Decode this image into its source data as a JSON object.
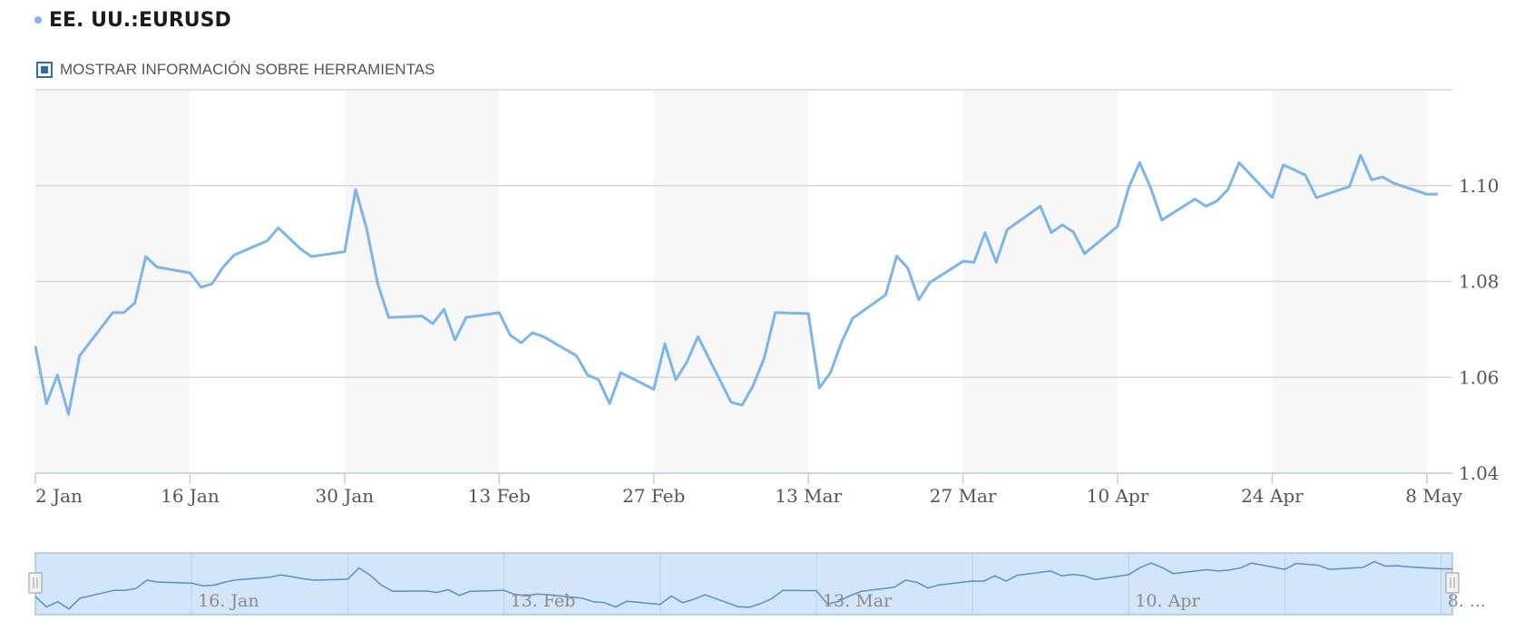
{
  "header": {
    "title": "EE. UU.:EURUSD"
  },
  "tooltip_toggle": {
    "label": "MOSTRAR INFORMACIÓN SOBRE HERRAMIENTAS",
    "checked": true
  },
  "colors": {
    "series": "#7cb5ec",
    "band": "#f7f7f7",
    "navigator_fill": "#d3e5f8",
    "navigator_border": "#a8c4e0",
    "grid": "#d8d8d8",
    "text": "#555555"
  },
  "chart_data": {
    "type": "line",
    "title": "",
    "xlabel": "",
    "ylabel": "",
    "grid": true,
    "ylim": [
      1.04,
      1.12
    ],
    "yticks": [
      1.04,
      1.06,
      1.08,
      1.1
    ],
    "ytick_labels": [
      "1.04",
      "1.06",
      "1.08",
      "1.10"
    ],
    "xlim": [
      "2023-01-02",
      "2023-05-09"
    ],
    "xticks": [
      "2023-01-02",
      "2023-01-16",
      "2023-01-30",
      "2023-02-13",
      "2023-02-27",
      "2023-03-13",
      "2023-03-27",
      "2023-04-10",
      "2023-04-24",
      "2023-05-08"
    ],
    "xtick_labels": [
      "2 Jan",
      "16 Jan",
      "30 Jan",
      "13 Feb",
      "27 Feb",
      "13 Mar",
      "27 Mar",
      "10 Apr",
      "24 Apr",
      "8 May"
    ],
    "navigator_labels": [
      "16. Jan",
      "13. Feb",
      "13. Mar",
      "10. Apr",
      "8. ..."
    ],
    "series": [
      {
        "x": [
          "2023-01-02",
          "2023-01-03",
          "2023-01-04",
          "2023-01-05",
          "2023-01-06",
          "2023-01-09",
          "2023-01-10",
          "2023-01-11",
          "2023-01-12",
          "2023-01-13",
          "2023-01-16",
          "2023-01-17",
          "2023-01-18",
          "2023-01-19",
          "2023-01-20",
          "2023-01-23",
          "2023-01-24",
          "2023-01-25",
          "2023-01-26",
          "2023-01-27",
          "2023-01-30",
          "2023-01-31",
          "2023-02-01",
          "2023-02-02",
          "2023-02-03",
          "2023-02-06",
          "2023-02-07",
          "2023-02-08",
          "2023-02-09",
          "2023-02-10",
          "2023-02-13",
          "2023-02-14",
          "2023-02-15",
          "2023-02-16",
          "2023-02-17",
          "2023-02-20",
          "2023-02-21",
          "2023-02-22",
          "2023-02-23",
          "2023-02-24",
          "2023-02-27",
          "2023-02-28",
          "2023-03-01",
          "2023-03-02",
          "2023-03-03",
          "2023-03-06",
          "2023-03-07",
          "2023-03-08",
          "2023-03-09",
          "2023-03-10",
          "2023-03-13",
          "2023-03-14",
          "2023-03-15",
          "2023-03-16",
          "2023-03-17",
          "2023-03-20",
          "2023-03-21",
          "2023-03-22",
          "2023-03-23",
          "2023-03-24",
          "2023-03-27",
          "2023-03-28",
          "2023-03-29",
          "2023-03-30",
          "2023-03-31",
          "2023-04-03",
          "2023-04-04",
          "2023-04-05",
          "2023-04-06",
          "2023-04-07",
          "2023-04-10",
          "2023-04-11",
          "2023-04-12",
          "2023-04-13",
          "2023-04-14",
          "2023-04-17",
          "2023-04-18",
          "2023-04-19",
          "2023-04-20",
          "2023-04-21",
          "2023-04-24",
          "2023-04-25",
          "2023-04-26",
          "2023-04-27",
          "2023-04-28",
          "2023-05-01",
          "2023-05-02",
          "2023-05-03",
          "2023-05-04",
          "2023-05-05",
          "2023-05-08",
          "2023-05-09"
        ],
        "values": [
          1.0665,
          1.0545,
          1.0605,
          1.0523,
          1.0645,
          1.0735,
          1.0735,
          1.0755,
          1.0852,
          1.083,
          1.0818,
          1.0788,
          1.0795,
          1.083,
          1.0855,
          1.0885,
          1.0912,
          1.089,
          1.0868,
          1.0852,
          1.0862,
          1.0992,
          1.091,
          1.0795,
          1.0725,
          1.0728,
          1.0712,
          1.0742,
          1.0678,
          1.0725,
          1.0735,
          1.0688,
          1.0672,
          1.0693,
          1.0685,
          1.0645,
          1.0605,
          1.0595,
          1.0545,
          1.061,
          1.0575,
          1.067,
          1.0595,
          1.0632,
          1.0685,
          1.0548,
          1.0542,
          1.0583,
          1.064,
          1.0735,
          1.0733,
          1.0578,
          1.061,
          1.0673,
          1.0723,
          1.0772,
          1.0853,
          1.0828,
          1.0762,
          1.0798,
          1.0842,
          1.084,
          1.0902,
          1.084,
          1.0908,
          1.0957,
          1.0902,
          1.0918,
          1.0903,
          1.0858,
          1.0915,
          1.0995,
          1.1048,
          1.0995,
          1.0928,
          1.0972,
          1.0957,
          1.0968,
          1.0992,
          1.1048,
          1.0975,
          1.1043,
          1.1033,
          1.1022,
          1.0975,
          1.0998,
          1.1063,
          1.1012,
          1.1018,
          1.1005,
          1.0982,
          1.0982
        ]
      }
    ]
  }
}
